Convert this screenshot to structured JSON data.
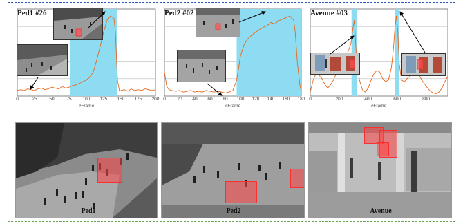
{
  "chart_data": [
    {
      "type": "line",
      "title": "Ped1 #26",
      "xlabel": "#Frame",
      "xlim": [
        0,
        200
      ],
      "xticks": [
        "0",
        "25",
        "50",
        "75",
        "100",
        "125",
        "150",
        "175",
        "200"
      ],
      "highlight": [
        [
          76,
          145
        ]
      ],
      "x": [
        0,
        5,
        10,
        15,
        20,
        25,
        30,
        35,
        40,
        45,
        50,
        55,
        60,
        65,
        70,
        75,
        80,
        85,
        90,
        95,
        100,
        105,
        110,
        115,
        120,
        125,
        130,
        135,
        140,
        142,
        145,
        148,
        150,
        155,
        160,
        165,
        170,
        175,
        180,
        185,
        190,
        195,
        200
      ],
      "values": [
        0.07,
        0.08,
        0.07,
        0.09,
        0.08,
        0.07,
        0.09,
        0.1,
        0.08,
        0.09,
        0.11,
        0.1,
        0.09,
        0.12,
        0.1,
        0.11,
        0.13,
        0.14,
        0.16,
        0.18,
        0.2,
        0.24,
        0.3,
        0.45,
        0.62,
        0.8,
        0.95,
        1.0,
        0.97,
        0.8,
        0.2,
        0.06,
        0.07,
        0.08,
        0.06,
        0.09,
        0.07,
        0.08,
        0.07,
        0.09,
        0.08,
        0.07,
        0.08
      ],
      "color": "#e8661a",
      "highlight_color": "#8edcf2"
    },
    {
      "type": "line",
      "title": "Ped2 #02",
      "xlabel": "#Frame",
      "xlim": [
        0,
        180
      ],
      "xticks": [
        "0",
        "20",
        "40",
        "60",
        "80",
        "100",
        "120",
        "140",
        "160",
        "180"
      ],
      "highlight": [
        [
          95,
          180
        ]
      ],
      "x": [
        0,
        3,
        6,
        10,
        15,
        20,
        25,
        30,
        35,
        40,
        45,
        50,
        55,
        60,
        65,
        70,
        75,
        80,
        85,
        90,
        95,
        100,
        105,
        110,
        115,
        120,
        125,
        130,
        135,
        140,
        145,
        150,
        155,
        160,
        165,
        170,
        172,
        175,
        178,
        180
      ],
      "values": [
        0.3,
        0.12,
        0.08,
        0.07,
        0.06,
        0.07,
        0.05,
        0.06,
        0.07,
        0.05,
        0.06,
        0.05,
        0.07,
        0.06,
        0.05,
        0.06,
        0.05,
        0.04,
        0.05,
        0.07,
        0.2,
        0.5,
        0.65,
        0.72,
        0.76,
        0.8,
        0.83,
        0.86,
        0.88,
        0.92,
        0.9,
        0.94,
        0.96,
        0.98,
        1.0,
        0.95,
        0.8,
        0.4,
        0.15,
        0.05
      ],
      "color": "#e8661a",
      "highlight_color": "#8edcf2"
    },
    {
      "type": "line",
      "title": "Avenue #03",
      "xlabel": "#Frame",
      "xlim": [
        0,
        950
      ],
      "xticks": [
        "0",
        "200",
        "400",
        "600",
        "800"
      ],
      "highlight": [
        [
          285,
          325
        ],
        [
          585,
          615
        ]
      ],
      "x": [
        0,
        20,
        40,
        60,
        80,
        100,
        120,
        140,
        160,
        180,
        200,
        220,
        240,
        260,
        280,
        295,
        305,
        315,
        325,
        340,
        360,
        380,
        400,
        420,
        440,
        460,
        480,
        500,
        520,
        540,
        560,
        575,
        585,
        595,
        605,
        615,
        630,
        650,
        670,
        690,
        710,
        730,
        750,
        770,
        790,
        810,
        830,
        850,
        870,
        890,
        910,
        930,
        950
      ],
      "values": [
        0.05,
        0.2,
        0.28,
        0.26,
        0.22,
        0.15,
        0.1,
        0.14,
        0.2,
        0.28,
        0.35,
        0.4,
        0.45,
        0.55,
        0.65,
        0.85,
        0.95,
        0.6,
        0.4,
        0.2,
        0.08,
        0.05,
        0.1,
        0.2,
        0.28,
        0.32,
        0.3,
        0.22,
        0.18,
        0.2,
        0.35,
        0.6,
        0.85,
        1.0,
        0.8,
        0.4,
        0.2,
        0.18,
        0.22,
        0.25,
        0.28,
        0.3,
        0.27,
        0.2,
        0.15,
        0.1,
        0.06,
        0.04,
        0.03,
        0.05,
        0.1,
        0.18,
        0.25
      ],
      "color": "#e8661a",
      "highlight_color": "#8edcf2"
    }
  ],
  "scenes": [
    {
      "label": "Ped1"
    },
    {
      "label": "Ped2"
    },
    {
      "label": "Avenue"
    }
  ]
}
